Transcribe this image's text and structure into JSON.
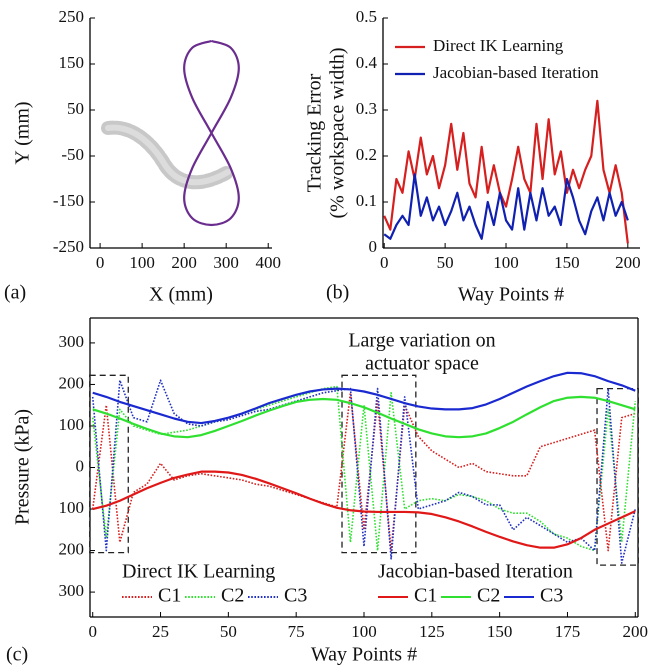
{
  "chart_data": [
    {
      "type": "line",
      "panel_label": "(a)",
      "xlabel": "X (mm)",
      "ylabel": "Y (mm)",
      "smooth": true,
      "xlim": [
        -24,
        409
      ],
      "ylim": [
        -250,
        250
      ],
      "xticks": [
        0,
        100,
        200,
        300,
        400
      ],
      "yticks": [
        -250,
        -150,
        -50,
        50,
        150,
        250
      ],
      "series": [
        {
          "color": "#6a2c8e",
          "x": [
            265,
            311,
            330,
            311,
            265,
            219,
            200,
            219,
            265,
            311,
            330,
            311,
            265,
            219,
            200,
            219,
            265
          ],
          "values": [
            200,
            185,
            141,
            77,
            0,
            -77,
            -141,
            -185,
            -200,
            -185,
            -141,
            -77,
            0,
            77,
            141,
            185,
            200
          ]
        }
      ]
    },
    {
      "type": "line",
      "panel_label": "(b)",
      "xlabel": "Way Points #",
      "ylabel": [
        "Tracking Error",
        "(% workspace width)"
      ],
      "xlim": [
        -1,
        210
      ],
      "ylim": [
        0,
        0.5
      ],
      "xticks": [
        0,
        50,
        100,
        150,
        200
      ],
      "yticks": [
        0,
        0.1,
        0.2,
        0.3,
        0.4,
        0.5
      ],
      "legend": "upper right",
      "x": [
        0,
        5,
        10,
        15,
        20,
        25,
        30,
        35,
        40,
        45,
        50,
        55,
        60,
        65,
        70,
        75,
        80,
        85,
        90,
        95,
        100,
        105,
        110,
        115,
        120,
        125,
        130,
        135,
        140,
        145,
        150,
        155,
        160,
        165,
        170,
        175,
        180,
        185,
        190,
        195,
        200
      ],
      "series": [
        {
          "name": "Direct IK Learning",
          "color": "#d62020",
          "values": [
            0.07,
            0.04,
            0.15,
            0.12,
            0.21,
            0.15,
            0.24,
            0.16,
            0.2,
            0.13,
            0.18,
            0.27,
            0.17,
            0.25,
            0.14,
            0.11,
            0.22,
            0.12,
            0.18,
            0.12,
            0.09,
            0.15,
            0.22,
            0.15,
            0.12,
            0.27,
            0.15,
            0.28,
            0.16,
            0.21,
            0.12,
            0.17,
            0.13,
            0.17,
            0.2,
            0.32,
            0.17,
            0.12,
            0.18,
            0.12,
            0.01
          ]
        },
        {
          "name": "Jacobian-based Iteration",
          "color": "#1020b0",
          "values": [
            0.03,
            0.02,
            0.05,
            0.07,
            0.05,
            0.16,
            0.07,
            0.11,
            0.06,
            0.09,
            0.05,
            0.08,
            0.12,
            0.06,
            0.09,
            0.05,
            0.02,
            0.1,
            0.05,
            0.12,
            0.06,
            0.04,
            0.13,
            0.04,
            0.12,
            0.06,
            0.13,
            0.07,
            0.09,
            0.05,
            0.15,
            0.11,
            0.06,
            0.03,
            0.08,
            0.11,
            0.06,
            0.12,
            0.07,
            0.1,
            0.06
          ]
        }
      ]
    },
    {
      "type": "line",
      "panel_label": "(c)",
      "xlabel": "Way Points #",
      "ylabel": "Pressure (kPa)",
      "box": true,
      "annotation": [
        "Large variation on",
        "actuator space"
      ],
      "xlim": [
        -1,
        201
      ],
      "ylim": [
        -360,
        360
      ],
      "xticks": [
        0,
        25,
        50,
        75,
        100,
        125,
        150,
        175,
        200
      ],
      "yticks": [
        {
          "value": -300,
          "label": "300"
        },
        {
          "value": -200,
          "label": "200"
        },
        {
          "value": -100,
          "label": "100"
        },
        0,
        100,
        200,
        300
      ],
      "regions": [
        {
          "x": [
            0,
            12
          ],
          "y": [
            -205,
            222
          ]
        },
        {
          "x": [
            93,
            118
          ],
          "y": [
            -205,
            222
          ]
        },
        {
          "x": [
            187,
            200
          ],
          "y": [
            -235,
            190
          ]
        }
      ],
      "x": [
        0,
        5,
        10,
        15,
        20,
        25,
        30,
        35,
        40,
        45,
        50,
        55,
        60,
        65,
        70,
        75,
        80,
        85,
        90,
        95,
        100,
        105,
        110,
        115,
        120,
        125,
        130,
        135,
        140,
        145,
        150,
        155,
        160,
        165,
        170,
        175,
        180,
        185,
        190,
        195,
        200
      ],
      "series_groups": [
        {
          "title": "Direct IK Learning",
          "dash": "dotted",
          "series": [
            {
              "name": "C1",
              "color": "#d62020",
              "values": [
                -100,
                150,
                -180,
                -60,
                -40,
                10,
                -30,
                -20,
                -15,
                -20,
                -25,
                -30,
                -40,
                -45,
                -55,
                -65,
                -75,
                -85,
                -95,
                180,
                -150,
                160,
                -200,
                150,
                75,
                40,
                20,
                0,
                10,
                -10,
                -15,
                -20,
                -20,
                50,
                60,
                70,
                80,
                90,
                -200,
                120,
                130
              ]
            },
            {
              "name": "C2",
              "color": "#30e030",
              "values": [
                120,
                -170,
                140,
                100,
                90,
                80,
                85,
                90,
                100,
                110,
                120,
                130,
                140,
                150,
                160,
                170,
                180,
                190,
                195,
                -180,
                150,
                -200,
                180,
                -100,
                -80,
                -75,
                -80,
                -65,
                -70,
                -80,
                -100,
                -110,
                -110,
                -130,
                -160,
                -170,
                -190,
                -200,
                140,
                -180,
                160
              ]
            },
            {
              "name": "C3",
              "color": "#2030c0",
              "values": [
                170,
                -200,
                210,
                120,
                110,
                210,
                130,
                105,
                100,
                110,
                115,
                125,
                135,
                140,
                150,
                160,
                170,
                180,
                185,
                190,
                -190,
                190,
                -220,
                170,
                -100,
                -90,
                -80,
                -60,
                -70,
                -90,
                -90,
                -150,
                -120,
                -140,
                -160,
                -180,
                -170,
                -200,
                190,
                -230,
                -100
              ]
            }
          ]
        },
        {
          "title": "Jacobian-based Iteration",
          "dash": "solid",
          "series": [
            {
              "name": "C1",
              "color": "#e01818",
              "values": [
                -100,
                -92,
                -80,
                -65,
                -50,
                -37,
                -25,
                -17,
                -10,
                -10,
                -12,
                -18,
                -27,
                -38,
                -50,
                -62,
                -75,
                -87,
                -97,
                -103,
                -106,
                -107,
                -107,
                -107,
                -108,
                -112,
                -120,
                -130,
                -142,
                -155,
                -167,
                -178,
                -187,
                -193,
                -193,
                -185,
                -170,
                -150,
                -135,
                -120,
                -105
              ]
            },
            {
              "name": "C2",
              "color": "#30e030",
              "values": [
                140,
                130,
                118,
                105,
                93,
                82,
                75,
                73,
                78,
                88,
                100,
                112,
                125,
                137,
                148,
                158,
                163,
                165,
                163,
                155,
                145,
                132,
                118,
                105,
                92,
                82,
                75,
                73,
                75,
                82,
                95,
                110,
                128,
                145,
                160,
                168,
                170,
                168,
                160,
                150,
                140
              ]
            },
            {
              "name": "C3",
              "color": "#1a2ad0",
              "values": [
                180,
                170,
                158,
                148,
                138,
                128,
                118,
                110,
                107,
                112,
                120,
                130,
                142,
                155,
                165,
                175,
                183,
                188,
                190,
                188,
                183,
                175,
                165,
                155,
                147,
                142,
                140,
                140,
                143,
                152,
                165,
                180,
                195,
                208,
                220,
                228,
                227,
                220,
                208,
                198,
                185
              ]
            }
          ]
        }
      ]
    }
  ]
}
